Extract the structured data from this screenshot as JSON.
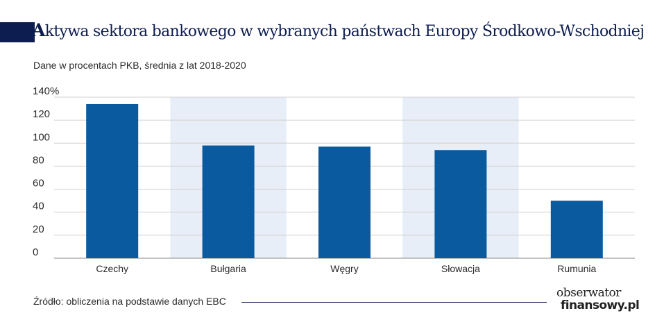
{
  "title": {
    "first_letter": "A",
    "rest": "ktywa sektora bankowego w wybranych państwach Europy Środkowo-Wschodniej"
  },
  "subtitle": "Dane w procentach PKB, średnia z lat 2018-2020",
  "footer": {
    "source": "Źródło: obliczenia na podstawie danych EBC"
  },
  "logo": {
    "line1": "obserwator",
    "line2": "finansowy.pl"
  },
  "colors": {
    "bar": "#0a5aa0",
    "band": "#e8eef7",
    "grid": "#d0d0d0",
    "title": "#0d1d4f"
  },
  "chart_data": {
    "type": "bar",
    "categories": [
      "Czechy",
      "Bułgaria",
      "Węgry",
      "Słowacja",
      "Rumunia"
    ],
    "values": [
      134,
      98,
      97,
      94,
      50
    ],
    "ylim": [
      0,
      140
    ],
    "yticks": [
      {
        "value": 0,
        "label": "0"
      },
      {
        "value": 20,
        "label": "20"
      },
      {
        "value": 40,
        "label": "40"
      },
      {
        "value": 60,
        "label": "60"
      },
      {
        "value": 80,
        "label": "80"
      },
      {
        "value": 100,
        "label": "100"
      },
      {
        "value": 120,
        "label": "120"
      },
      {
        "value": 140,
        "label": "140%"
      }
    ],
    "grid": true,
    "alternate_band_shading": true,
    "xlabel": "",
    "ylabel": ""
  }
}
